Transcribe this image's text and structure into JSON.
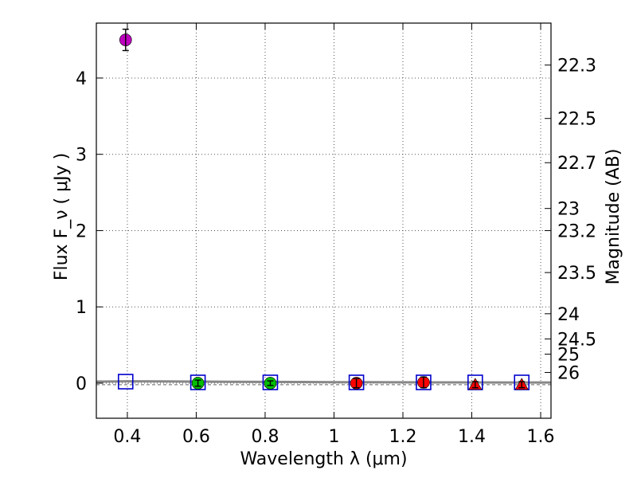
{
  "chart_data": {
    "type": "scatter",
    "title": "",
    "xlabel": "Wavelength  λ (μm)",
    "ylabel_left": "Flux  F_ν  ( μJy )",
    "ylabel_right": "Magnitude (AB)",
    "xlim": [
      0.31,
      1.63
    ],
    "ylim": [
      -0.46,
      4.72
    ],
    "grid": true,
    "x_ticks": [
      {
        "value": 0.4,
        "label": "0.4"
      },
      {
        "value": 0.6,
        "label": "0.6"
      },
      {
        "value": 0.8,
        "label": "0.8"
      },
      {
        "value": 1.0,
        "label": "1"
      },
      {
        "value": 1.2,
        "label": "1.2"
      },
      {
        "value": 1.4,
        "label": "1.4"
      },
      {
        "value": 1.6,
        "label": "1.6"
      }
    ],
    "y_ticks": [
      {
        "value": 0,
        "label": "0"
      },
      {
        "value": 1,
        "label": "1"
      },
      {
        "value": 2,
        "label": "2"
      },
      {
        "value": 3,
        "label": "3"
      },
      {
        "value": 4,
        "label": "4"
      }
    ],
    "right_ticks": [
      {
        "flux": 4.17,
        "label": "22.3"
      },
      {
        "flux": 3.47,
        "label": "22.5"
      },
      {
        "flux": 2.89,
        "label": "22.7"
      },
      {
        "flux": 2.29,
        "label": "23"
      },
      {
        "flux": 2.0,
        "label": "23.2"
      },
      {
        "flux": 1.45,
        "label": "23.5"
      },
      {
        "flux": 0.91,
        "label": "24"
      },
      {
        "flux": 0.58,
        "label": "24.5"
      },
      {
        "flux": 0.38,
        "label": "25"
      },
      {
        "flux": 0.14,
        "label": "26"
      }
    ],
    "model_squares": [
      {
        "x": 0.395,
        "y": 0.02
      },
      {
        "x": 0.605,
        "y": 0.01
      },
      {
        "x": 0.815,
        "y": 0.01
      },
      {
        "x": 1.065,
        "y": 0.01
      },
      {
        "x": 1.26,
        "y": 0.01
      },
      {
        "x": 1.41,
        "y": 0.01
      },
      {
        "x": 1.545,
        "y": 0.01
      }
    ],
    "points": [
      {
        "x": 0.395,
        "y": 4.5,
        "err": 0.14,
        "marker": "circle",
        "color": "#bf00bf"
      },
      {
        "x": 0.605,
        "y": 0.0,
        "err": 0.04,
        "marker": "circle",
        "color": "#00bf00"
      },
      {
        "x": 0.815,
        "y": 0.0,
        "err": 0.03,
        "marker": "circle",
        "color": "#00bf00"
      },
      {
        "x": 1.065,
        "y": 0.0,
        "err": 0.06,
        "marker": "circle",
        "color": "#ff0000"
      },
      {
        "x": 1.26,
        "y": 0.01,
        "err": 0.07,
        "marker": "circle",
        "color": "#ff0000"
      },
      {
        "x": 1.41,
        "y": -0.02,
        "err": 0.04,
        "marker": "triangle",
        "color": "#ff0000"
      },
      {
        "x": 1.545,
        "y": -0.02,
        "err": 0.04,
        "marker": "triangle",
        "color": "#ff0000"
      }
    ],
    "sed_line": {
      "x": [
        0.31,
        0.4,
        0.5,
        0.6,
        0.7,
        0.8,
        0.9,
        1.0,
        1.1,
        1.2,
        1.3,
        1.4,
        1.5,
        1.63
      ],
      "y": [
        0.02,
        0.025,
        0.022,
        0.02,
        0.018,
        0.016,
        0.015,
        0.013,
        0.012,
        0.011,
        0.01,
        0.01,
        0.009,
        0.009
      ],
      "color": "#888888"
    },
    "dashed_baseline": {
      "y": -0.02,
      "color": "#808080"
    },
    "colors": {
      "square": "#0000cc",
      "errorbar": "#000000",
      "grid": "#555555"
    }
  }
}
